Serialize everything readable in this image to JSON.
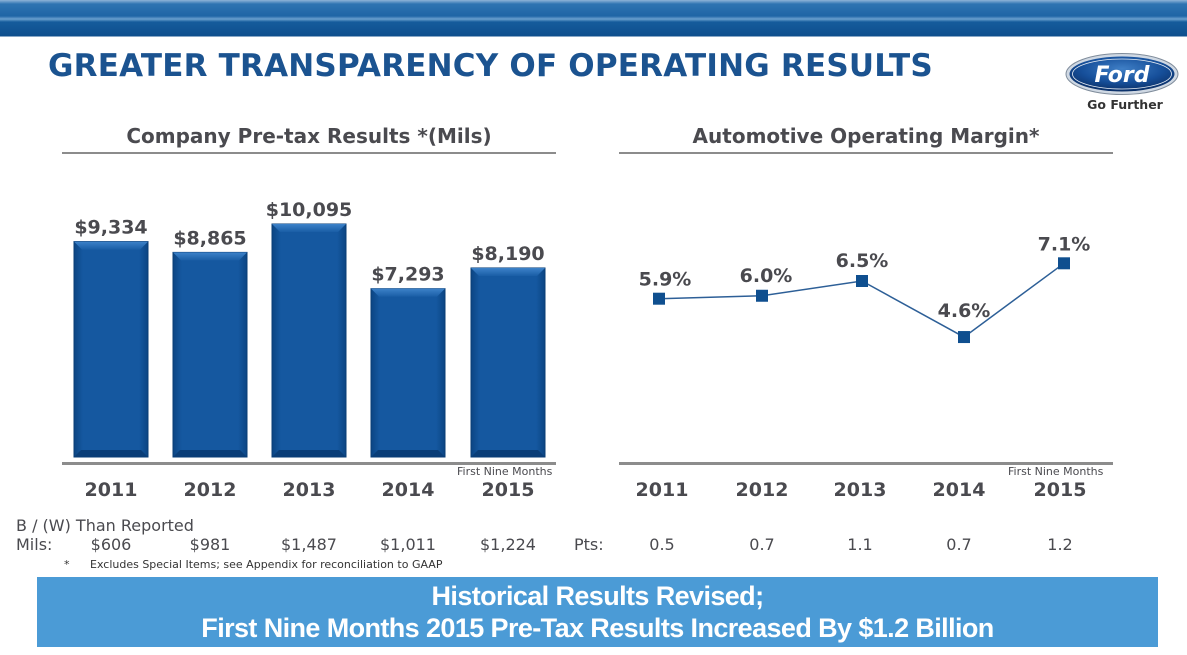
{
  "header": {
    "title": "GREATER TRANSPARENCY OF OPERATING RESULTS",
    "logo_text": "Ford",
    "tagline": "Go Further"
  },
  "chart_data": [
    {
      "type": "bar",
      "title": "Company Pre-tax Results *(Mils)",
      "categories": [
        "2011",
        "2012",
        "2013",
        "2014",
        "2015"
      ],
      "values": [
        9334,
        8865,
        10095,
        7293,
        8190
      ],
      "data_labels": [
        "$9,334",
        "$8,865",
        "$10,095",
        "$7,293",
        "$8,190"
      ],
      "category_note": {
        "2015": "First Nine Months"
      },
      "xlabel": "",
      "ylabel": "",
      "ylim": [
        0,
        10500
      ],
      "grid": false,
      "color": "#0f5599"
    },
    {
      "type": "line",
      "title": "Automotive Operating Margin*",
      "categories": [
        "2011",
        "2012",
        "2013",
        "2014",
        "2015"
      ],
      "values": [
        5.9,
        6.0,
        6.5,
        4.6,
        7.1
      ],
      "data_labels": [
        "5.9%",
        "6.0%",
        "6.5%",
        "4.6%",
        "7.1%"
      ],
      "category_note": {
        "2015": "First Nine Months"
      },
      "xlabel": "",
      "ylabel": "",
      "grid": false,
      "marker": "square",
      "color": "#0f4f8f"
    }
  ],
  "adjustments": {
    "heading": "B / (W) Than Reported",
    "mils_label": "Mils:",
    "mils_values": [
      "$606",
      "$981",
      "$1,487",
      "$1,011",
      "$1,224"
    ],
    "pts_label": "Pts:",
    "pts_values": [
      "0.5",
      "0.7",
      "1.1",
      "0.7",
      "1.2"
    ]
  },
  "footnote": {
    "marker": "*",
    "text": "Excludes Special Items; see Appendix for reconciliation to GAAP"
  },
  "banner": {
    "line1": "Historical Results Revised;",
    "line2": "First Nine Months 2015 Pre-Tax Results Increased By $1.2 Billion"
  }
}
